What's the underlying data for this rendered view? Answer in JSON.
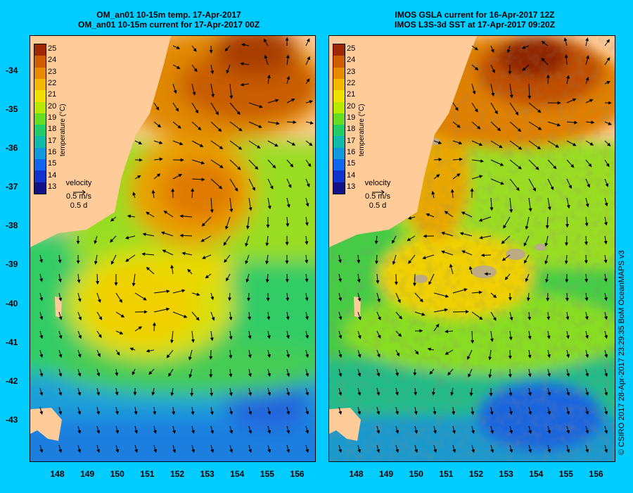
{
  "left_panel": {
    "title_line1": "OM_an01 10-15m temp. 17-Apr-2017",
    "title_line2": "OM_an01 10-15m current for 17-Apr-2017 00Z"
  },
  "right_panel": {
    "title_line1": "IMOS GSLA current for 16-Apr-2017 12Z",
    "title_line2": "IMOS L3S-3d SST at 17-Apr-2017 09:20Z"
  },
  "axes": {
    "lat_labels": [
      "-34",
      "-35",
      "-36",
      "-37",
      "-38",
      "-39",
      "-40",
      "-41",
      "-42",
      "-43"
    ],
    "lat_values": [
      -34,
      -35,
      -36,
      -37,
      -38,
      -39,
      -40,
      -41,
      -42,
      -43
    ],
    "lon_labels": [
      "148",
      "149",
      "150",
      "151",
      "152",
      "153",
      "154",
      "155",
      "156"
    ],
    "lon_values": [
      148,
      149,
      150,
      151,
      152,
      153,
      154,
      155,
      156
    ],
    "lon_range": [
      147.05,
      156.55
    ],
    "lat_range": [
      -33.1,
      -44.05
    ]
  },
  "legend": {
    "title": "temperature (°C)",
    "ticks": [
      "25",
      "24",
      "23",
      "22",
      "21",
      "20",
      "19",
      "18",
      "17",
      "16",
      "15",
      "14",
      "13"
    ],
    "colors": [
      "#a02800",
      "#d25c00",
      "#e88a00",
      "#f2b800",
      "#f0e000",
      "#b8e800",
      "#66dd22",
      "#22cc66",
      "#11bbaa",
      "#1199dd",
      "#1166ee",
      "#1133cc",
      "#111188"
    ]
  },
  "velocity_key": {
    "label": "velocity",
    "speed": "0.5 m/s",
    "duration": "0.5 d"
  },
  "credit": "© CSIRO 2017   28-Apr-2017 23:29:35 BoM OceanMAPS v3",
  "colors": {
    "background": "#00ccff",
    "land": "#ffcc99",
    "cloud": "#b8a890"
  }
}
